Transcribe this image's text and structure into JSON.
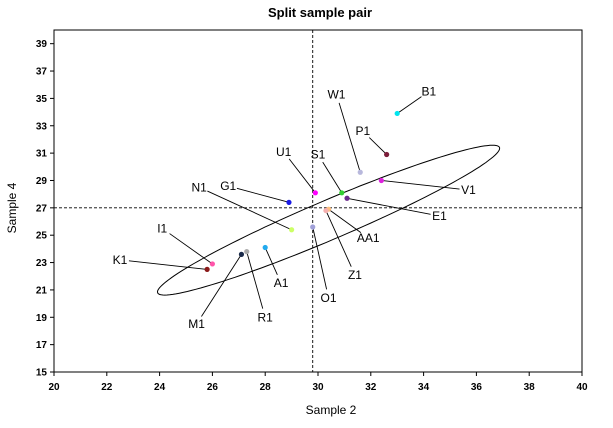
{
  "chart_data": {
    "type": "scatter",
    "title": "Split sample pair",
    "xlabel": "Sample 2",
    "ylabel": "Sample 4",
    "xlim": [
      20,
      40
    ],
    "ylim": [
      15,
      40
    ],
    "x_ticks": [
      20,
      22,
      24,
      26,
      28,
      30,
      32,
      34,
      36,
      38,
      40
    ],
    "y_ticks": [
      15,
      17,
      19,
      21,
      23,
      25,
      27,
      29,
      31,
      33,
      35,
      37,
      39
    ],
    "grid": false,
    "legend": "none",
    "reference_lines": {
      "vertical_x": 29.8,
      "horizontal_y": 27.0,
      "style": "dashed"
    },
    "ellipse": {
      "center": [
        30.4,
        26.1
      ],
      "semi_major": 8.4,
      "semi_minor": 1.2,
      "angle_deg": 40
    },
    "points": [
      {
        "label": "B1",
        "x": 33.0,
        "y": 33.9,
        "color": "#00E5EE",
        "label_at": [
          34.2,
          35.5
        ]
      },
      {
        "label": "P1",
        "x": 32.6,
        "y": 30.9,
        "color": "#7B1D3A",
        "label_at": [
          31.7,
          32.6
        ]
      },
      {
        "label": "W1",
        "x": 31.6,
        "y": 29.6,
        "color": "#B8B8DC",
        "label_at": [
          30.7,
          35.3
        ]
      },
      {
        "label": "S1",
        "x": 30.9,
        "y": 28.1,
        "color": "#32CD32",
        "label_at": [
          30.0,
          30.9
        ]
      },
      {
        "label": "V1",
        "x": 32.4,
        "y": 29.0,
        "color": "#DD22DD",
        "label_at": [
          35.7,
          28.3
        ]
      },
      {
        "label": "E1",
        "x": 31.1,
        "y": 27.7,
        "color": "#6B2A8C",
        "label_at": [
          34.6,
          26.4
        ]
      },
      {
        "label": "U1",
        "x": 29.9,
        "y": 28.1,
        "color": "#FF00FF",
        "label_at": [
          28.7,
          31.1
        ]
      },
      {
        "label": "G1",
        "x": 28.9,
        "y": 27.4,
        "color": "#1A1AE6",
        "label_at": [
          26.6,
          28.6
        ]
      },
      {
        "label": "AA1",
        "x": 30.4,
        "y": 26.9,
        "color": "#FFC080",
        "label_at": [
          31.9,
          24.8
        ]
      },
      {
        "label": "N1",
        "x": 29.0,
        "y": 25.4,
        "color": "#CCFF66",
        "label_at": [
          25.5,
          28.5
        ]
      },
      {
        "label": "Z1",
        "x": 30.3,
        "y": 26.8,
        "color": "#F4B0B0",
        "label_at": [
          31.4,
          22.1
        ]
      },
      {
        "label": "O1",
        "x": 29.8,
        "y": 25.6,
        "color": "#A0A0D8",
        "label_at": [
          30.4,
          20.4
        ]
      },
      {
        "label": "I1",
        "x": 26.0,
        "y": 22.9,
        "color": "#FF55AA",
        "label_at": [
          24.1,
          25.5
        ]
      },
      {
        "label": "K1",
        "x": 25.8,
        "y": 22.5,
        "color": "#8B1A1A",
        "label_at": [
          22.5,
          23.2
        ]
      },
      {
        "label": "A1",
        "x": 28.0,
        "y": 24.1,
        "color": "#22AAEE",
        "label_at": [
          28.6,
          21.5
        ]
      },
      {
        "label": "R1",
        "x": 27.3,
        "y": 23.8,
        "color": "#AAAAAA",
        "label_at": [
          28.0,
          19.0
        ]
      },
      {
        "label": "M1",
        "x": 27.1,
        "y": 23.6,
        "color": "#1A2A4A",
        "label_at": [
          25.4,
          18.5
        ]
      }
    ]
  }
}
